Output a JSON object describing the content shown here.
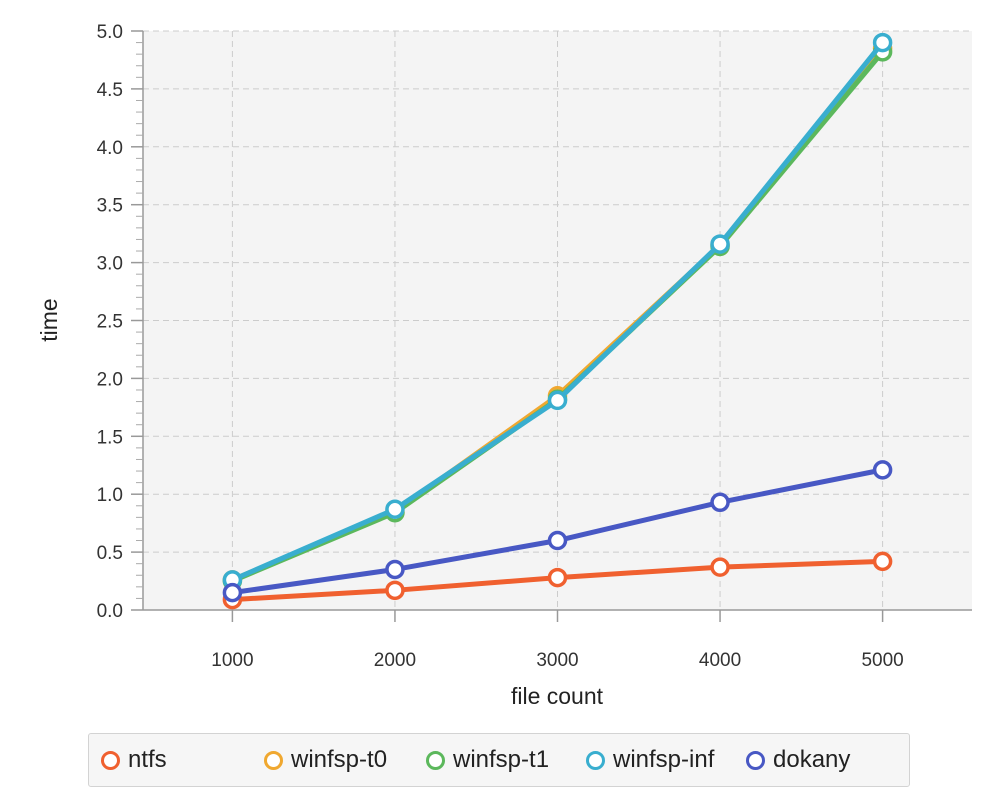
{
  "chart_data": {
    "type": "line",
    "title": "",
    "xlabel": "file count",
    "ylabel": "time",
    "x": [
      1000,
      2000,
      3000,
      4000,
      5000
    ],
    "xlim": [
      450,
      5550
    ],
    "ylim": [
      0,
      5
    ],
    "xticks": [
      "1000",
      "2000",
      "3000",
      "4000",
      "5000"
    ],
    "yticks": [
      "0.0",
      "0.5",
      "1.0",
      "1.5",
      "2.0",
      "2.5",
      "3.0",
      "3.5",
      "4.0",
      "4.5",
      "5.0"
    ],
    "grid": true,
    "legend_position": "bottom",
    "series": [
      {
        "name": "ntfs",
        "color": "#f0602f",
        "values": [
          0.09,
          0.17,
          0.28,
          0.37,
          0.42
        ]
      },
      {
        "name": "winfsp-t0",
        "color": "#f0a830",
        "values": [
          0.26,
          0.85,
          1.85,
          3.15,
          4.85
        ]
      },
      {
        "name": "winfsp-t1",
        "color": "#5cb85c",
        "values": [
          0.25,
          0.84,
          1.82,
          3.14,
          4.82
        ]
      },
      {
        "name": "winfsp-inf",
        "color": "#39aecf",
        "values": [
          0.26,
          0.87,
          1.81,
          3.16,
          4.9
        ]
      },
      {
        "name": "dokany",
        "color": "#4858c4",
        "values": [
          0.15,
          0.35,
          0.6,
          0.93,
          1.21
        ]
      }
    ]
  }
}
